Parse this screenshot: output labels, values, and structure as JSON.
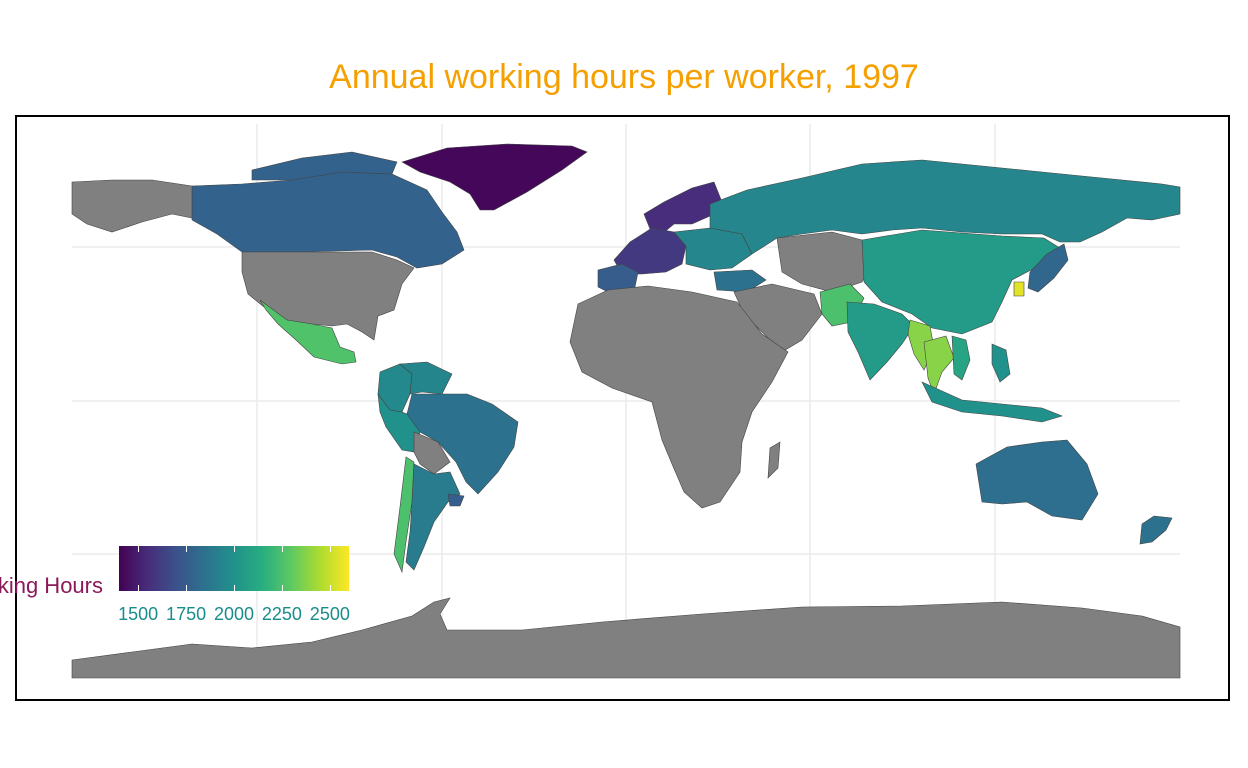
{
  "title": "Annual working hours per worker, 1997",
  "legend": {
    "title": "Working Hours",
    "min": 1400,
    "max": 2600,
    "ticks": [
      {
        "value": 1500,
        "label": "1500"
      },
      {
        "value": 1750,
        "label": "1750"
      },
      {
        "value": 2000,
        "label": "2000"
      },
      {
        "value": 2250,
        "label": "2250"
      },
      {
        "value": 2500,
        "label": "2500"
      }
    ],
    "palette": "viridis",
    "no_data_color": "#808080"
  },
  "grid": true,
  "chart_data": {
    "type": "choropleth",
    "title": "Annual working hours per worker, 1997",
    "value_name": "Working Hours",
    "range": [
      1400,
      2600
    ],
    "regions": [
      {
        "name": "Greenland",
        "value": 1420
      },
      {
        "name": "Canada",
        "value": 1780
      },
      {
        "name": "USA",
        "value": null
      },
      {
        "name": "Mexico",
        "value": 2260
      },
      {
        "name": "Colombia",
        "value": 1960
      },
      {
        "name": "Venezuela",
        "value": 1940
      },
      {
        "name": "Brazil",
        "value": 1850
      },
      {
        "name": "Peru",
        "value": 2000
      },
      {
        "name": "Bolivia",
        "value": null
      },
      {
        "name": "Chile",
        "value": 2250
      },
      {
        "name": "Argentina",
        "value": 1900
      },
      {
        "name": "Uruguay",
        "value": 1750
      },
      {
        "name": "Scandinavia",
        "value": 1550
      },
      {
        "name": "Western Europe",
        "value": 1600
      },
      {
        "name": "Iberia",
        "value": 1750
      },
      {
        "name": "Eastern Europe",
        "value": 1950
      },
      {
        "name": "Turkey",
        "value": 1850
      },
      {
        "name": "Russia",
        "value": 1950
      },
      {
        "name": "China",
        "value": 2050
      },
      {
        "name": "India",
        "value": 2050
      },
      {
        "name": "Pakistan",
        "value": 2250
      },
      {
        "name": "Myanmar",
        "value": 2380
      },
      {
        "name": "Thailand",
        "value": 2380
      },
      {
        "name": "Vietnam",
        "value": 2100
      },
      {
        "name": "Indonesia",
        "value": 2000
      },
      {
        "name": "Philippines",
        "value": 2000
      },
      {
        "name": "South Korea",
        "value": 2550
      },
      {
        "name": "Japan",
        "value": 1800
      },
      {
        "name": "Australia",
        "value": 1830
      },
      {
        "name": "New Zealand",
        "value": 1850
      },
      {
        "name": "Africa",
        "value": null
      },
      {
        "name": "Middle East",
        "value": null
      },
      {
        "name": "Central Asia",
        "value": null
      },
      {
        "name": "Antarctica",
        "value": null
      }
    ]
  }
}
